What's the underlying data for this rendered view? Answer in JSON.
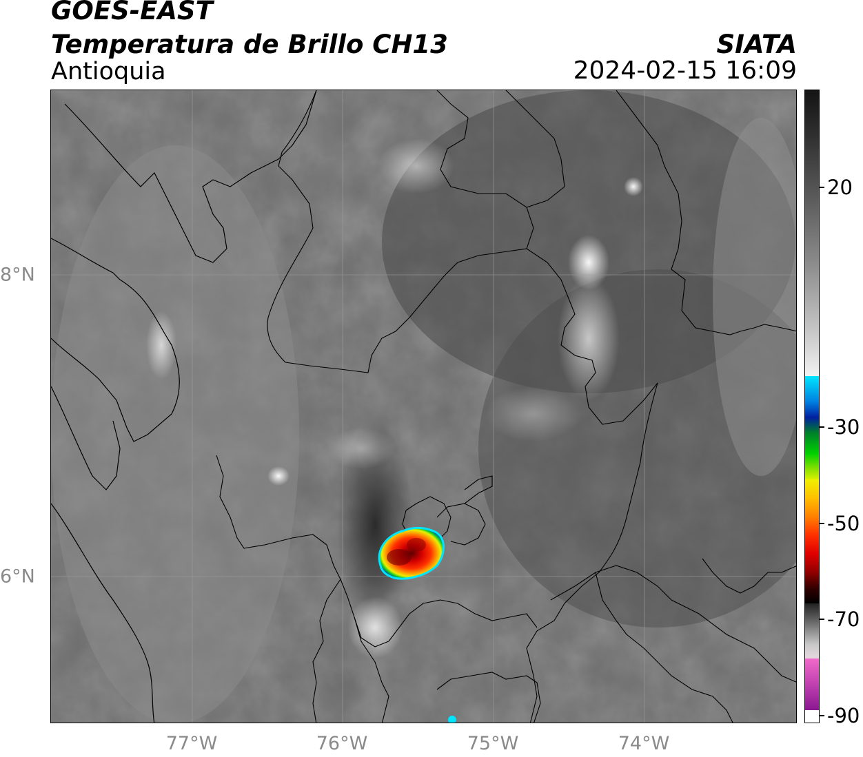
{
  "header": {
    "satellite": "GOES-EAST",
    "product": "Temperatura de Brillo CH13",
    "region": "Antioquia",
    "organization": "SIATA",
    "datetime": "2024-02-15 16:09"
  },
  "map": {
    "longitude_ticks": [
      "77°W",
      "76°W",
      "75°W",
      "74°W"
    ],
    "latitude_ticks": [
      "8°N",
      "6°N"
    ],
    "storm_cell": {
      "approx_lon": -75.6,
      "approx_lat": 6.15
    }
  },
  "colorbar": {
    "tick_labels": [
      "20",
      "-30",
      "-50",
      "-70",
      "-90"
    ],
    "colors": {
      "warm_gray_top": "#141414",
      "light_gray": "#f2f2f2",
      "cyan": "#00e5ff",
      "blue": "#0020a0",
      "green": "#00d000",
      "yellow": "#f0f000",
      "orange": "#ff9000",
      "red": "#e00000",
      "dark_red": "#700000",
      "black": "#000000",
      "pink": "#e070c0",
      "purple": "#8a1890"
    }
  }
}
